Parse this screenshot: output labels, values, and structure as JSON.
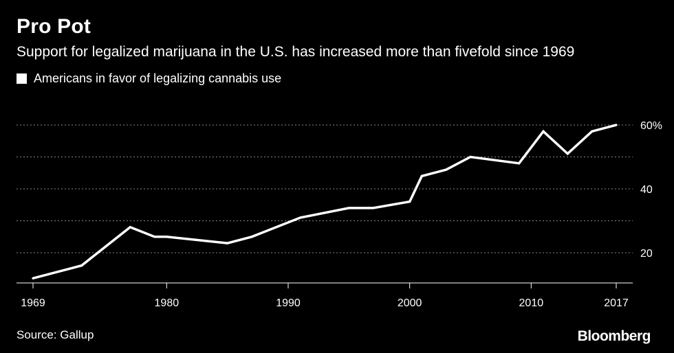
{
  "title": "Pro Pot",
  "subtitle": "Support for legalized marijuana in the U.S. has increased more than fivefold since 1969",
  "source": "Source: Gallup",
  "logo_text": "Bloomberg",
  "colors": {
    "background": "#000000",
    "line": "#ffffff",
    "grid": "#8a8a8a",
    "text": "#ffffff"
  },
  "chart_data": {
    "type": "line",
    "title": "Pro Pot",
    "subtitle": "Support for legalized marijuana in the U.S. has increased more than fivefold since 1969",
    "xlabel": "",
    "ylabel": "",
    "legend_position": "top-left",
    "grid": "horizontal dotted",
    "xlim": [
      1969,
      2017
    ],
    "ylim": [
      10,
      66
    ],
    "x_ticks": [
      1969,
      1980,
      1990,
      2000,
      2010,
      2017
    ],
    "x_tick_labels": [
      "1969",
      "1980",
      "1990",
      "2000",
      "2010",
      "2017"
    ],
    "y_ticks": [
      20,
      40,
      60
    ],
    "y_tick_labels": [
      "20",
      "40",
      "60%"
    ],
    "y_gridlines": [
      20,
      30,
      40,
      50,
      60
    ],
    "series": [
      {
        "name": "Americans in favor of legalizing cannabis use",
        "color": "#ffffff",
        "x": [
          1969,
          1972,
          1973,
          1977,
          1979,
          1980,
          1985,
          1987,
          1991,
          1995,
          1997,
          2000,
          2001,
          2003,
          2005,
          2009,
          2011,
          2013,
          2015,
          2017
        ],
        "y": [
          12,
          15,
          16,
          28,
          25,
          25,
          23,
          25,
          31,
          34,
          34,
          36,
          44,
          46,
          50,
          48,
          58,
          51,
          58,
          60
        ]
      }
    ]
  }
}
